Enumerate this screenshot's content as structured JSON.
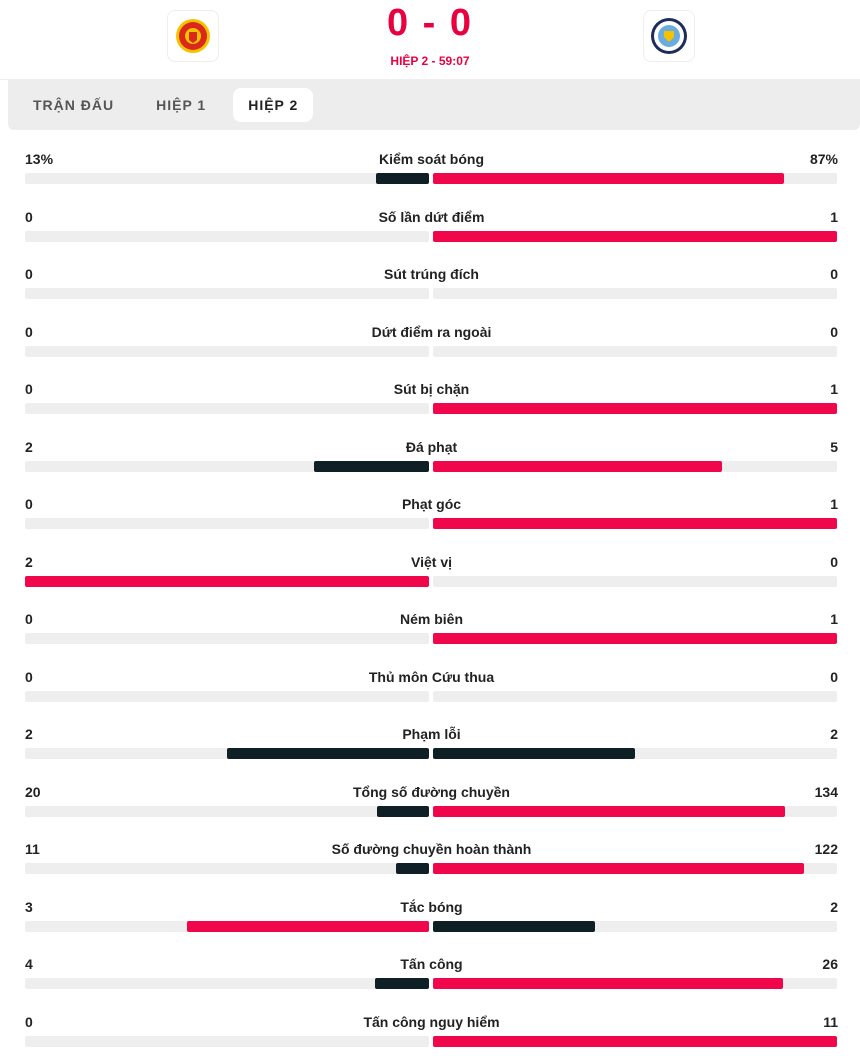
{
  "header": {
    "home_team_logo": "manchester-united-crest",
    "away_team_logo": "manchester-city-crest",
    "score": "0 - 0",
    "period": "HIỆP 2 - 59:07"
  },
  "tabs": [
    {
      "label": "TRẬN ĐẤU"
    },
    {
      "label": "HIỆP 1"
    },
    {
      "label": "HIỆP 2",
      "active": true
    }
  ],
  "colors": {
    "leader": "#f0064a",
    "trailer": "#0f1f26",
    "track": "#eeeeee"
  },
  "stats": [
    {
      "label": "Kiểm soát bóng",
      "home": "13%",
      "away": "87%",
      "h": 13,
      "a": 87
    },
    {
      "label": "Số lần dứt điểm",
      "home": "0",
      "away": "1",
      "h": 0,
      "a": 1
    },
    {
      "label": "Sút trúng đích",
      "home": "0",
      "away": "0",
      "h": 0,
      "a": 0
    },
    {
      "label": "Dứt điểm ra ngoài",
      "home": "0",
      "away": "0",
      "h": 0,
      "a": 0
    },
    {
      "label": "Sút bị chặn",
      "home": "0",
      "away": "1",
      "h": 0,
      "a": 1
    },
    {
      "label": "Đá phạt",
      "home": "2",
      "away": "5",
      "h": 2,
      "a": 5
    },
    {
      "label": "Phạt góc",
      "home": "0",
      "away": "1",
      "h": 0,
      "a": 1
    },
    {
      "label": "Việt vị",
      "home": "2",
      "away": "0",
      "h": 2,
      "a": 0
    },
    {
      "label": "Ném biên",
      "home": "0",
      "away": "1",
      "h": 0,
      "a": 1
    },
    {
      "label": "Thủ môn Cứu thua",
      "home": "0",
      "away": "0",
      "h": 0,
      "a": 0
    },
    {
      "label": "Phạm lỗi",
      "home": "2",
      "away": "2",
      "h": 2,
      "a": 2
    },
    {
      "label": "Tổng số đường chuyền",
      "home": "20",
      "away": "134",
      "h": 20,
      "a": 134
    },
    {
      "label": "Số đường chuyền hoàn thành",
      "home": "11",
      "away": "122",
      "h": 11,
      "a": 122
    },
    {
      "label": "Tắc bóng",
      "home": "3",
      "away": "2",
      "h": 3,
      "a": 2
    },
    {
      "label": "Tấn công",
      "home": "4",
      "away": "26",
      "h": 4,
      "a": 26
    },
    {
      "label": "Tấn công nguy hiểm",
      "home": "0",
      "away": "11",
      "h": 0,
      "a": 11
    }
  ]
}
